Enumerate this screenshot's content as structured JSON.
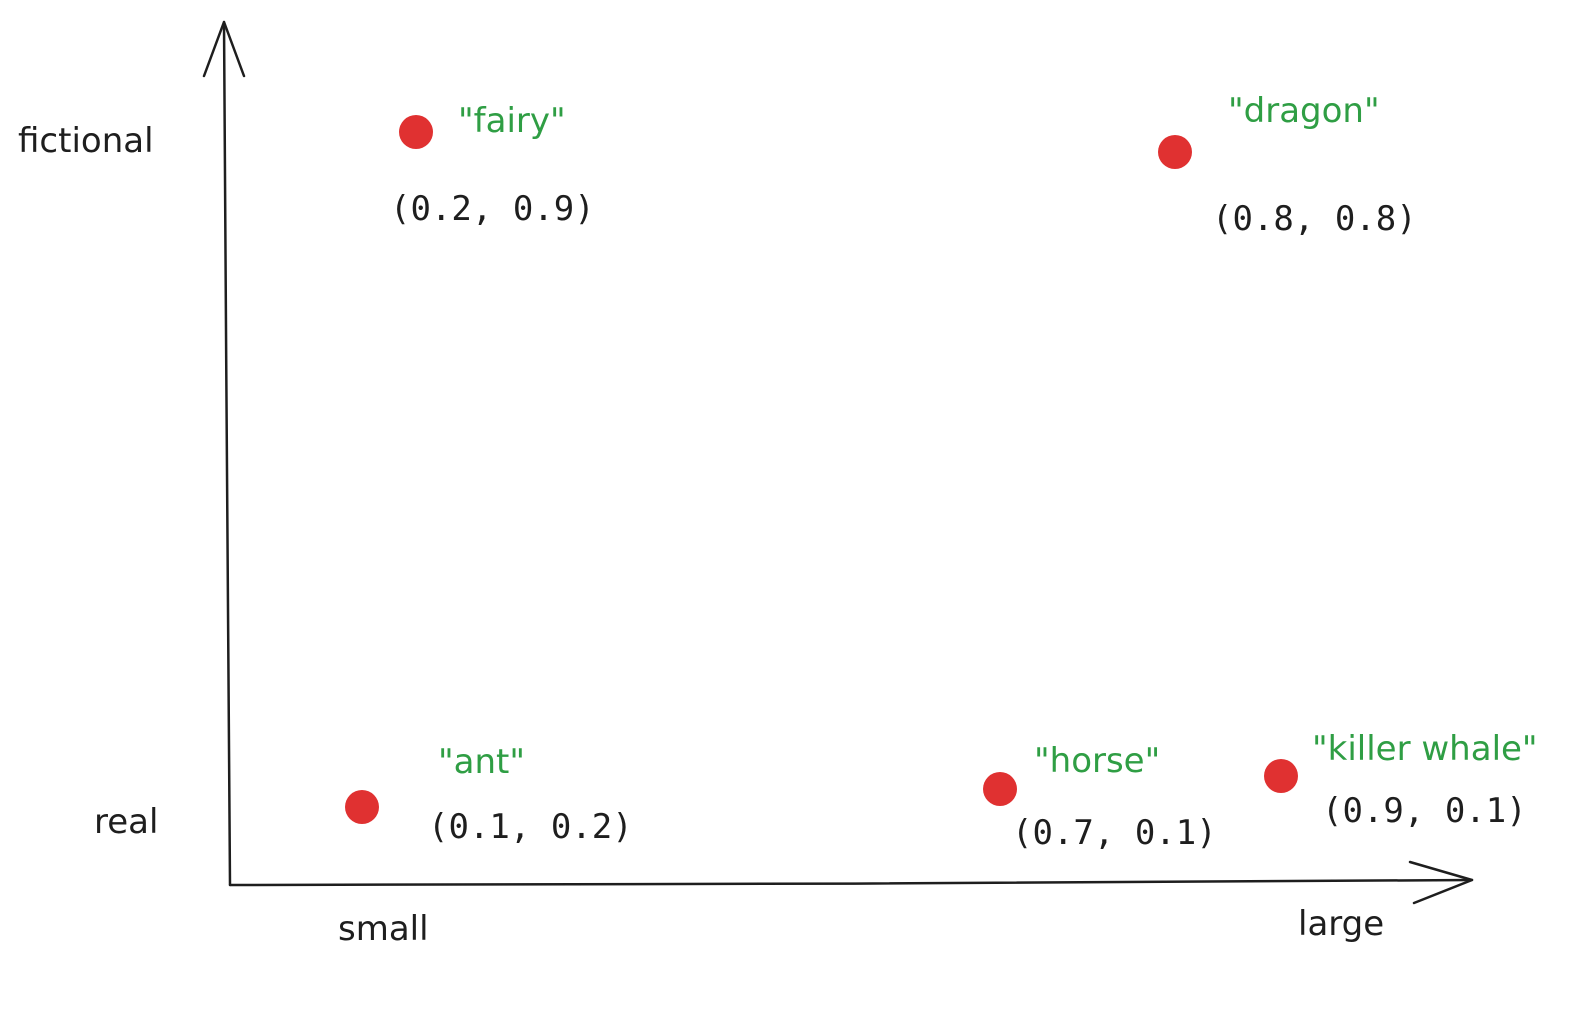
{
  "axes": {
    "y_top_label": "fictional",
    "y_bottom_label": "real",
    "x_left_label": "small",
    "x_right_label": "large"
  },
  "colors": {
    "ink": "#1e1e1e",
    "point": "#e03131",
    "word": "#2f9e44"
  },
  "points": [
    {
      "id": "fairy",
      "word": "\"fairy\"",
      "x": 0.2,
      "y": 0.9,
      "coord": "(0.2, 0.9)"
    },
    {
      "id": "dragon",
      "word": "\"dragon\"",
      "x": 0.8,
      "y": 0.8,
      "coord": "(0.8, 0.8)"
    },
    {
      "id": "ant",
      "word": "\"ant\"",
      "x": 0.1,
      "y": 0.2,
      "coord": "(0.1, 0.2)"
    },
    {
      "id": "horse",
      "word": "\"horse\"",
      "x": 0.7,
      "y": 0.1,
      "coord": "(0.7, 0.1)"
    },
    {
      "id": "killer-whale",
      "word": "\"killer whale\"",
      "x": 0.9,
      "y": 0.1,
      "coord": "(0.9, 0.1)"
    }
  ]
}
